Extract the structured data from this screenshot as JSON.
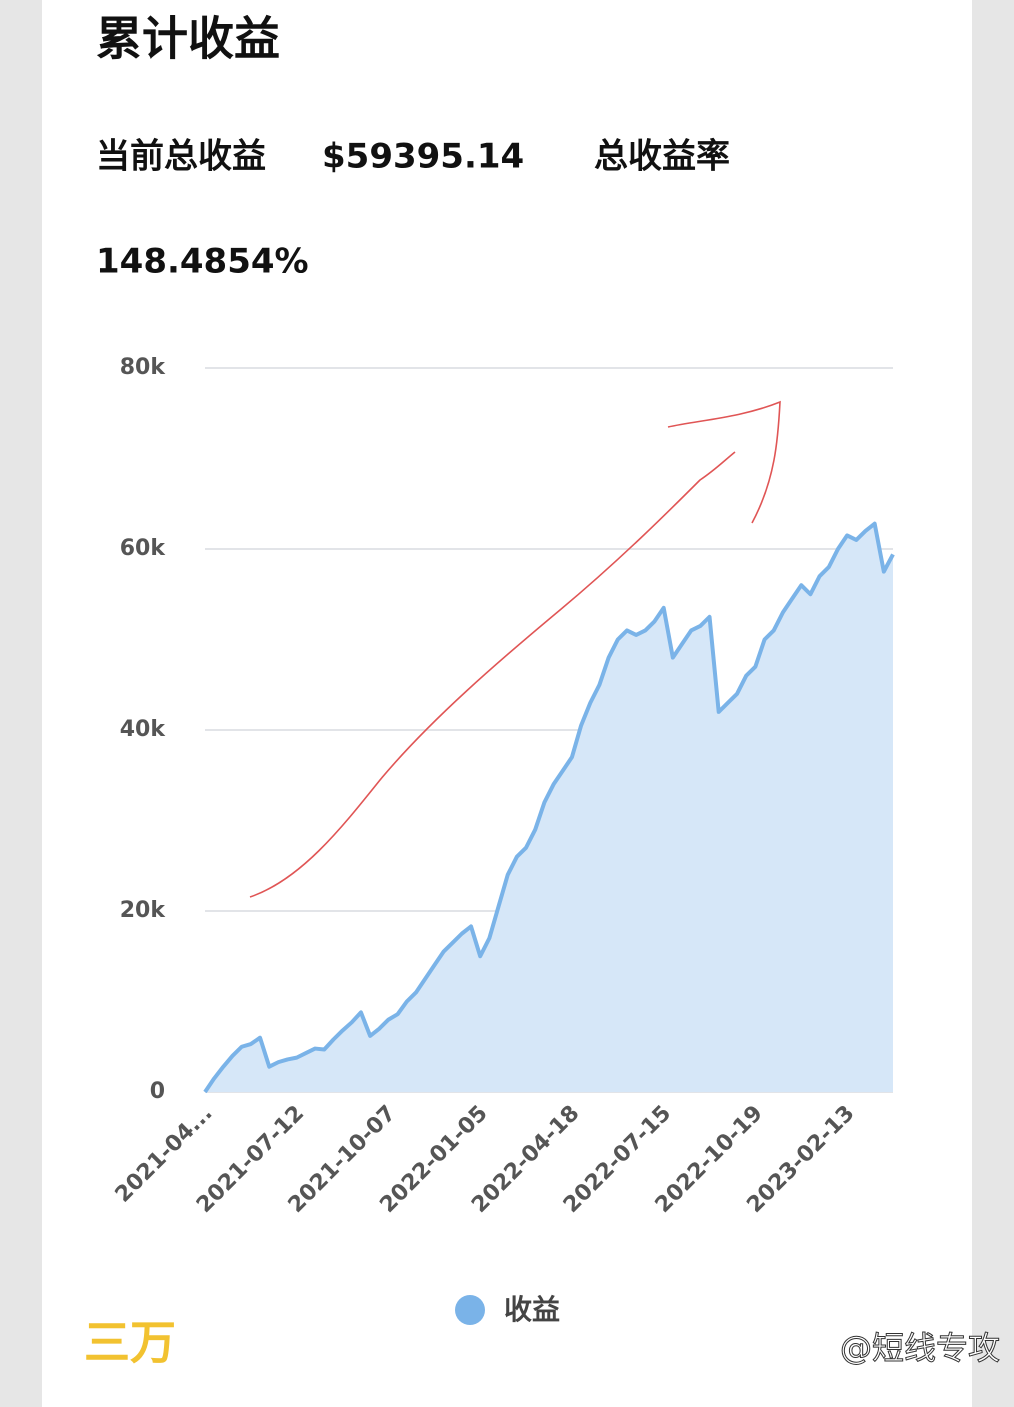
{
  "header": {
    "title": "累计收益",
    "total_profit_label": "当前总收益",
    "total_profit": "$59395.14",
    "return_label": "总收益率",
    "return_rate": "148.4854%"
  },
  "chart_data": {
    "type": "area",
    "categories": [
      "2021-04...",
      null,
      null,
      null,
      null,
      null,
      null,
      null,
      null,
      null,
      "2021-07-12",
      null,
      null,
      null,
      null,
      null,
      null,
      null,
      null,
      null,
      "2021-10-07",
      null,
      null,
      null,
      null,
      null,
      null,
      null,
      null,
      null,
      "2022-01-05",
      null,
      null,
      null,
      null,
      null,
      null,
      null,
      null,
      null,
      "2022-04-18",
      null,
      null,
      null,
      null,
      null,
      null,
      null,
      null,
      null,
      "2022-07-15",
      null,
      null,
      null,
      null,
      null,
      null,
      null,
      null,
      null,
      "2022-10-19",
      null,
      null,
      null,
      null,
      null,
      null,
      null,
      null,
      null,
      "2023-02-13",
      null,
      null,
      null,
      null,
      null
    ],
    "series": [
      {
        "name": "收益",
        "color": "#7ab3e8",
        "fill": "#d6e7f8",
        "values": [
          0,
          1500,
          2800,
          4000,
          5000,
          5300,
          6000,
          2800,
          3300,
          3600,
          3800,
          4300,
          4800,
          4700,
          5800,
          6800,
          7700,
          8800,
          6200,
          7000,
          8000,
          8600,
          10000,
          11000,
          12500,
          14000,
          15500,
          16500,
          17500,
          18300,
          15000,
          17000,
          20500,
          24000,
          26000,
          27000,
          29000,
          32000,
          34000,
          35500,
          37000,
          40500,
          43000,
          45000,
          48000,
          50000,
          51000,
          50500,
          51000,
          52000,
          53500,
          48000,
          49500,
          51000,
          51500,
          52500,
          42000,
          43000,
          44000,
          46000,
          47000,
          50000,
          51000,
          53000,
          54500,
          56000,
          55000,
          57000,
          58000,
          60000,
          61500,
          61000,
          62000,
          62800,
          57500,
          59400
        ]
      }
    ],
    "ylim": [
      0,
      80000
    ],
    "yticks": [
      0,
      {
        "value": 20000,
        "label": "20k"
      },
      {
        "value": 40000,
        "label": "40k"
      },
      {
        "value": 60000,
        "label": "60k"
      },
      {
        "value": 80000,
        "label": "80k"
      }
    ],
    "grid": true
  },
  "footer": {
    "logo": "三万",
    "watermark": "@短线专攻"
  }
}
